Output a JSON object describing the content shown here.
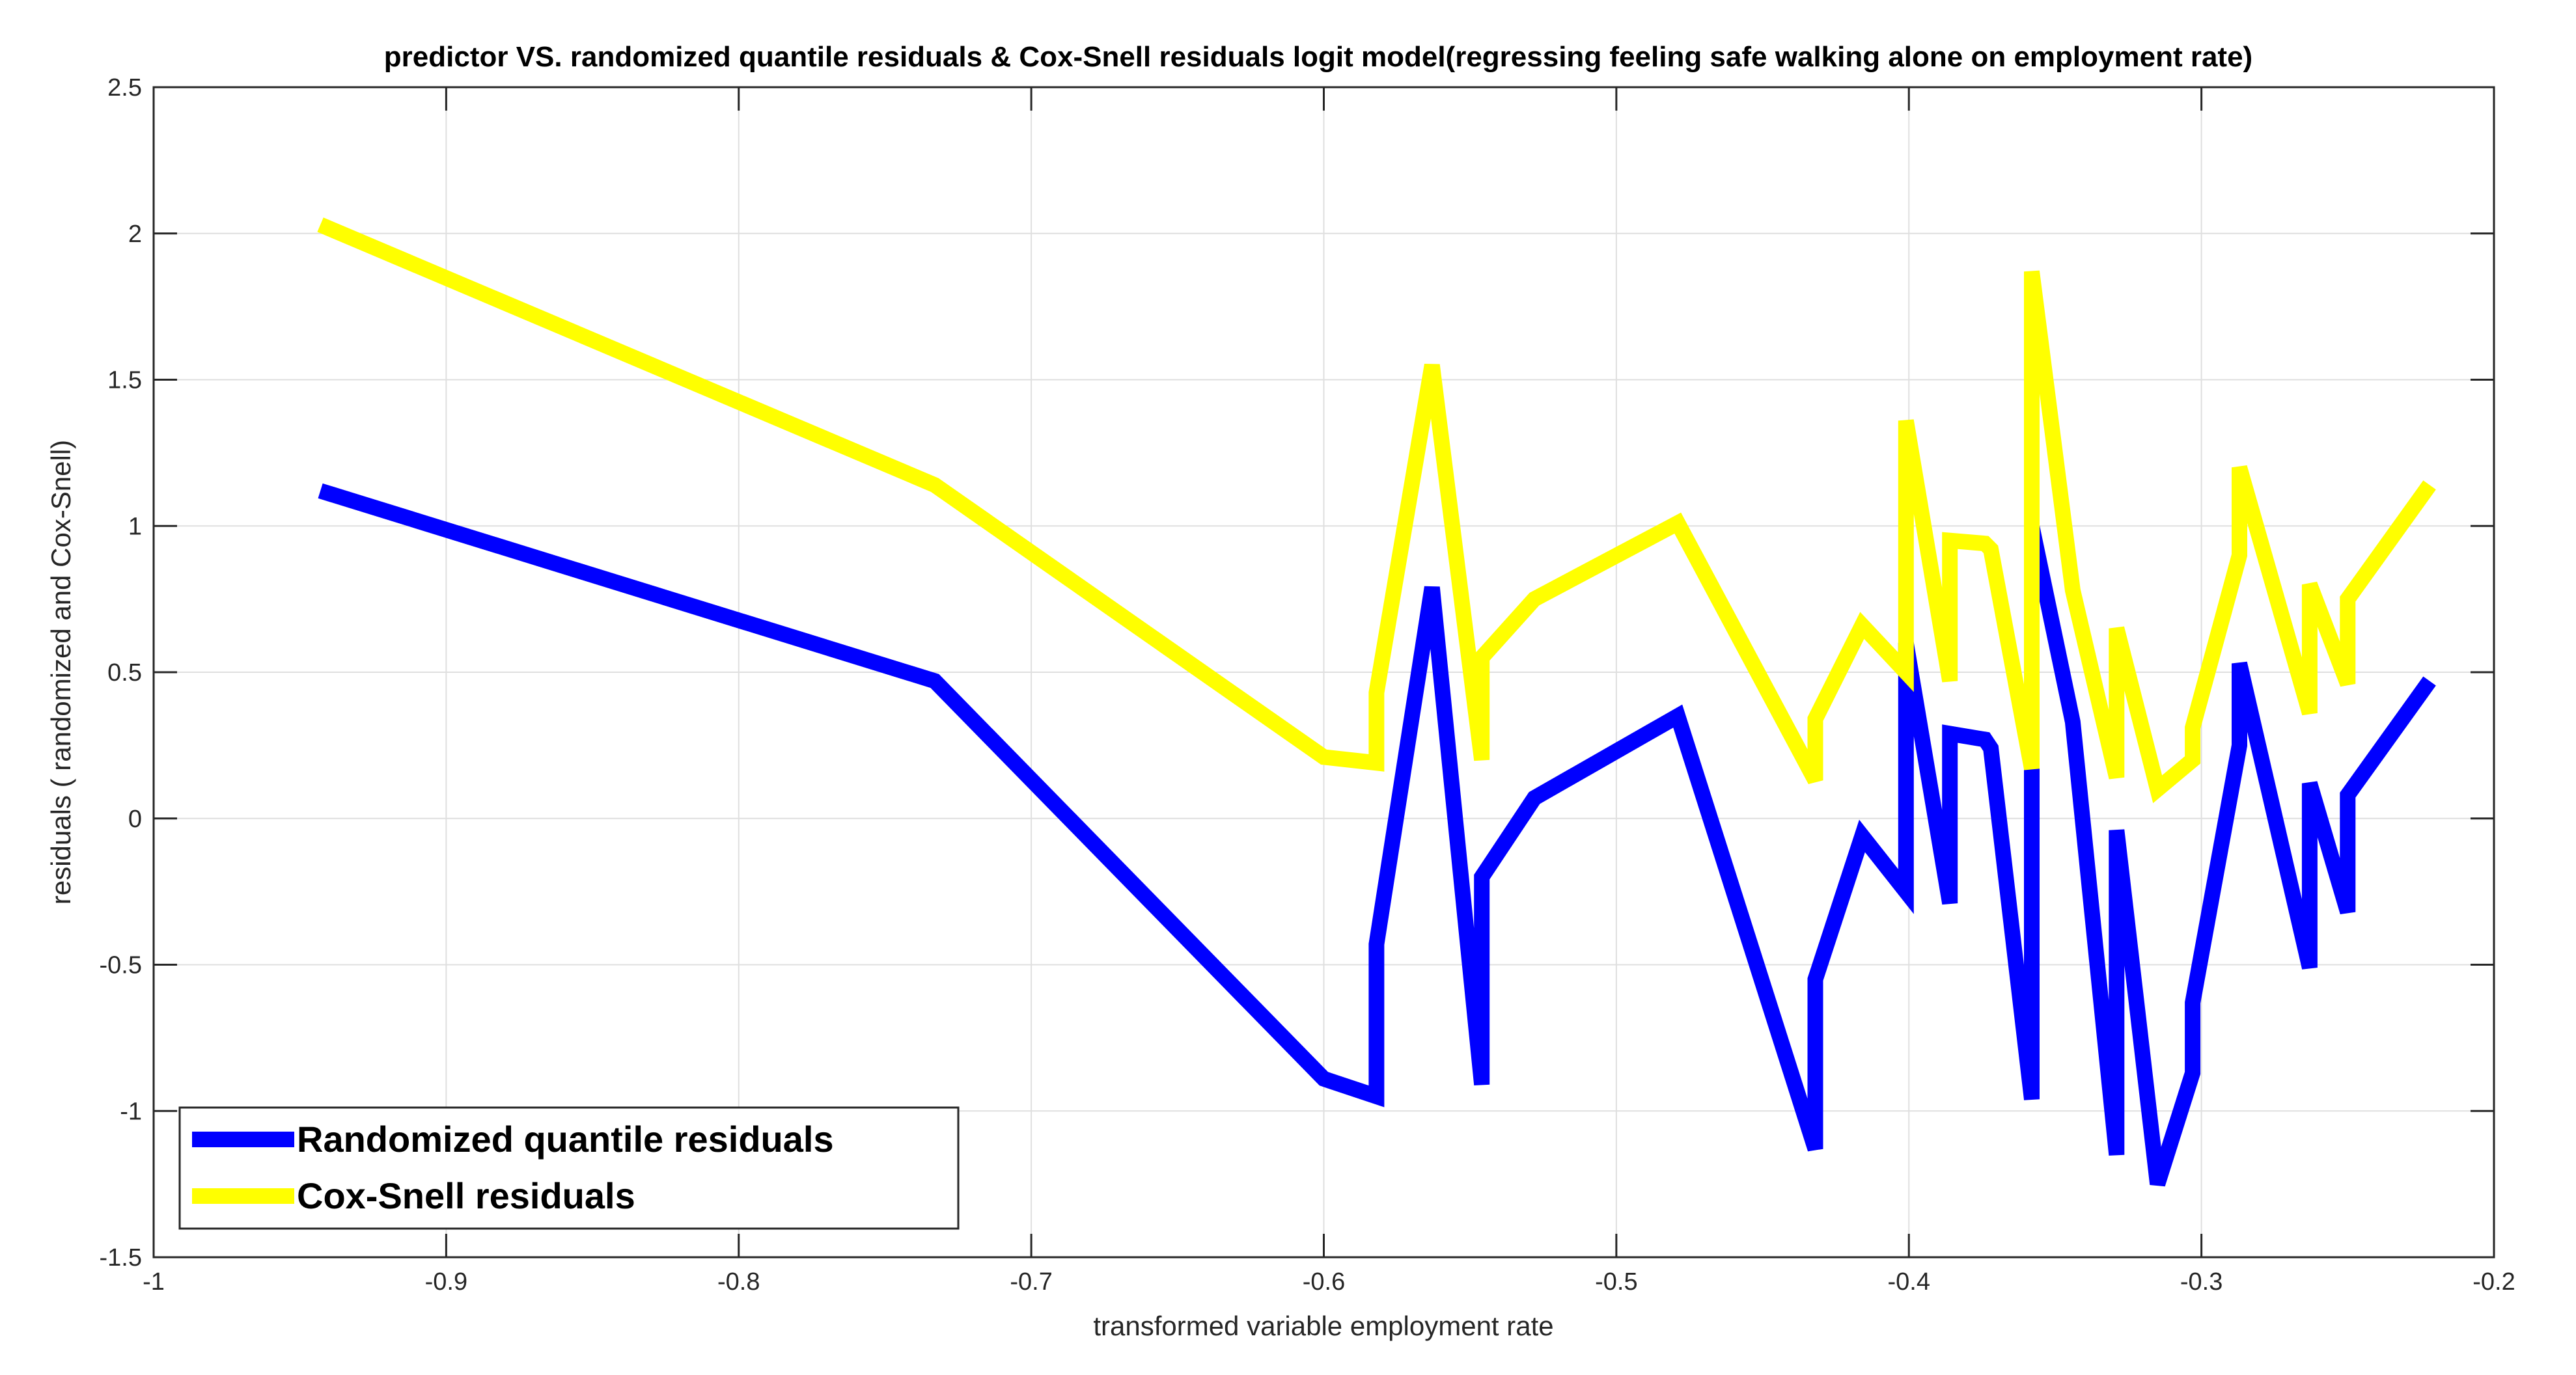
{
  "chart_data": {
    "type": "line",
    "title": "predictor VS. randomized quantile residuals & Cox-Snell residuals logit model(regressing feeling safe walking alone on employment rate)",
    "xlabel": "transformed variable employment rate",
    "ylabel": "residuals ( randomized and Cox-Snell)",
    "xlim": [
      -1,
      -0.2
    ],
    "ylim": [
      -1.5,
      2.5
    ],
    "xticks": [
      -1,
      -0.9,
      -0.8,
      -0.7,
      -0.6,
      -0.5,
      -0.4,
      -0.3,
      -0.2
    ],
    "xtick_labels": [
      "-1",
      "-0.9",
      "-0.8",
      "-0.7",
      "-0.6",
      "-0.5",
      "-0.4",
      "-0.3",
      "-0.2"
    ],
    "yticks": [
      -1.5,
      -1,
      -0.5,
      0,
      0.5,
      1,
      1.5,
      2,
      2.5
    ],
    "ytick_labels": [
      "-1.5",
      "-1",
      "-0.5",
      "0",
      "0.5",
      "1",
      "1.5",
      "2",
      "2.5"
    ],
    "grid": true,
    "legend_position": "bottom-left",
    "series": [
      {
        "name": "Randomized quantile residuals",
        "color": "#0000ff",
        "x": [
          -0.943,
          -0.733,
          -0.6,
          -0.582,
          -0.582,
          -0.563,
          -0.546,
          -0.546,
          -0.528,
          -0.479,
          -0.432,
          -0.432,
          -0.416,
          -0.401,
          -0.401,
          -0.386,
          -0.386,
          -0.374,
          -0.372,
          -0.358,
          -0.358,
          -0.358,
          -0.344,
          -0.329,
          -0.329,
          -0.315,
          -0.303,
          -0.303,
          -0.287,
          -0.287,
          -0.263,
          -0.263,
          -0.25,
          -0.25,
          -0.222
        ],
        "y": [
          1.12,
          0.47,
          -0.89,
          -0.95,
          -0.43,
          0.79,
          -0.91,
          -0.2,
          0.07,
          0.35,
          -1.13,
          -0.55,
          -0.06,
          -0.25,
          0.6,
          -0.29,
          0.29,
          0.27,
          0.24,
          -0.96,
          0.2,
          1.0,
          0.33,
          -1.15,
          -0.04,
          -1.25,
          -0.87,
          -0.63,
          0.25,
          0.53,
          -0.51,
          0.12,
          -0.32,
          0.08,
          0.47
        ]
      },
      {
        "name": "Cox-Snell residuals",
        "color": "#ffff00",
        "x": [
          -0.943,
          -0.733,
          -0.6,
          -0.582,
          -0.582,
          -0.563,
          -0.546,
          -0.546,
          -0.528,
          -0.479,
          -0.432,
          -0.432,
          -0.416,
          -0.401,
          -0.401,
          -0.386,
          -0.386,
          -0.374,
          -0.372,
          -0.358,
          -0.358,
          -0.344,
          -0.329,
          -0.329,
          -0.315,
          -0.303,
          -0.303,
          -0.287,
          -0.287,
          -0.263,
          -0.263,
          -0.25,
          -0.25,
          -0.222
        ],
        "y": [
          2.03,
          1.14,
          0.21,
          0.19,
          0.43,
          1.55,
          0.2,
          0.55,
          0.75,
          1.01,
          0.13,
          0.34,
          0.66,
          0.5,
          1.36,
          0.47,
          0.95,
          0.94,
          0.92,
          0.17,
          1.87,
          0.78,
          0.14,
          0.65,
          0.1,
          0.2,
          0.31,
          0.9,
          1.2,
          0.36,
          0.8,
          0.46,
          0.75,
          1.14
        ]
      }
    ]
  }
}
